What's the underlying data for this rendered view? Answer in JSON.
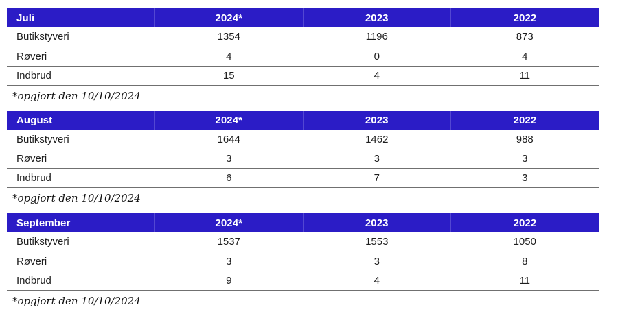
{
  "colors": {
    "header_bg": "#2B1CC6",
    "header_text": "#ffffff",
    "header_divider": "#5347D2",
    "row_border": "#707070",
    "text": "#1e1e1e",
    "footnote": "#111111",
    "page_bg": "#ffffff"
  },
  "tables": [
    {
      "month": "Juli",
      "years": [
        "2024*",
        "2023",
        "2022"
      ],
      "rows": [
        {
          "label": "Butikstyveri",
          "values": [
            "1354",
            "1196",
            "873"
          ]
        },
        {
          "label": "Røveri",
          "values": [
            "4",
            "0",
            "4"
          ]
        },
        {
          "label": "Indbrud",
          "values": [
            "15",
            "4",
            "11"
          ]
        }
      ],
      "footnote": "*opgjort den 10/10/2024"
    },
    {
      "month": "August",
      "years": [
        "2024*",
        "2023",
        "2022"
      ],
      "rows": [
        {
          "label": "Butikstyveri",
          "values": [
            "1644",
            "1462",
            "988"
          ]
        },
        {
          "label": "Røveri",
          "values": [
            "3",
            "3",
            "3"
          ]
        },
        {
          "label": "Indbrud",
          "values": [
            "6",
            "7",
            "3"
          ]
        }
      ],
      "footnote": "*opgjort den 10/10/2024"
    },
    {
      "month": "September",
      "years": [
        "2024*",
        "2023",
        "2022"
      ],
      "rows": [
        {
          "label": "Butikstyveri",
          "values": [
            "1537",
            "1553",
            "1050"
          ]
        },
        {
          "label": "Røveri",
          "values": [
            "3",
            "3",
            "8"
          ]
        },
        {
          "label": "Indbrud",
          "values": [
            "9",
            "4",
            "11"
          ]
        }
      ],
      "footnote": "*opgjort den 10/10/2024"
    }
  ]
}
